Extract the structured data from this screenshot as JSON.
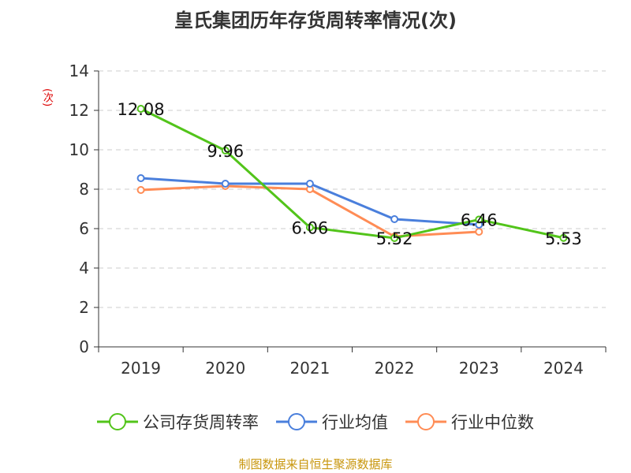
{
  "chart_data": {
    "type": "line",
    "title": "皇氏集团历年存货周转率情况(次)",
    "ylabel": "(次)",
    "categories": [
      "2019",
      "2020",
      "2021",
      "2022",
      "2023",
      "2024"
    ],
    "ylim": [
      0,
      14
    ],
    "yticks": [
      0,
      2,
      4,
      6,
      8,
      10,
      12,
      14
    ],
    "grid": true,
    "legend_position": "bottom",
    "series": [
      {
        "name": "公司存货周转率",
        "color": "#52c41a",
        "values": [
          12.08,
          9.96,
          6.06,
          5.52,
          6.46,
          5.53
        ],
        "labels": [
          "12.08",
          "9.96",
          "6.06",
          "5.52",
          "6.46",
          "5.53"
        ]
      },
      {
        "name": "行业均值",
        "color": "#4a7fdc",
        "values": [
          8.56,
          8.28,
          8.28,
          6.48,
          6.2,
          null
        ]
      },
      {
        "name": "行业中位数",
        "color": "#ff8c55",
        "values": [
          7.96,
          8.16,
          8.0,
          5.6,
          5.84,
          null
        ]
      }
    ]
  },
  "source": "制图数据来自恒生聚源数据库"
}
